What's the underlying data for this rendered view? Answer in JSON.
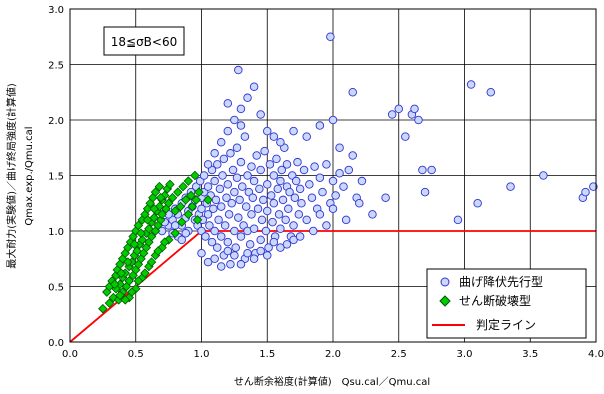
{
  "chart_data": {
    "type": "scatter",
    "title": "",
    "xlabel": "せん断余裕度(計算値)　Qsu.cal／Qmu.cal",
    "ylabel_line1": "最大耐力(実験値)／曲げ終局強度(計算値)",
    "ylabel_line2": "Qmax.exp./Qmu.cal",
    "xlim": [
      0.0,
      4.0
    ],
    "ylim": [
      0.0,
      3.0
    ],
    "xticks": [
      "0.0",
      "0.5",
      "1.0",
      "1.5",
      "2.0",
      "2.5",
      "3.0",
      "3.5",
      "4.0"
    ],
    "yticks": [
      "0.0",
      "0.5",
      "1.0",
      "1.5",
      "2.0",
      "2.5",
      "3.0"
    ],
    "grid": true,
    "annotation": "18≦σB<60",
    "legend_position": "bottom-right",
    "colors": {
      "flexure_fill": "#c8d8ff",
      "flexure_edge": "#3333cc",
      "shear_fill": "#00cc00",
      "shear_edge": "#005500",
      "judgement_line": "#ff0000"
    },
    "series": [
      {
        "name": "曲げ降伏先行型",
        "marker": "circle",
        "points": [
          [
            0.75,
            1.05
          ],
          [
            0.78,
            1.1
          ],
          [
            0.8,
            1.2
          ],
          [
            0.82,
            1.15
          ],
          [
            0.85,
            1.25
          ],
          [
            0.85,
            1.05
          ],
          [
            0.88,
            1.3
          ],
          [
            0.88,
            1.12
          ],
          [
            0.9,
            1.18
          ],
          [
            0.9,
            1.0
          ],
          [
            0.92,
            1.35
          ],
          [
            0.93,
            1.22
          ],
          [
            0.95,
            1.1
          ],
          [
            0.95,
            1.28
          ],
          [
            0.96,
            1.4
          ],
          [
            0.97,
            1.05
          ],
          [
            0.98,
            1.15
          ],
          [
            0.99,
            1.45
          ],
          [
            1.0,
            1.2
          ],
          [
            1.0,
            1.3
          ],
          [
            1.0,
            1.0
          ],
          [
            1.01,
            1.1
          ],
          [
            1.02,
            1.35
          ],
          [
            1.02,
            1.5
          ],
          [
            1.03,
            0.95
          ],
          [
            1.04,
            1.25
          ],
          [
            1.05,
            1.4
          ],
          [
            1.05,
            1.15
          ],
          [
            1.06,
            1.05
          ],
          [
            1.07,
            1.32
          ],
          [
            1.08,
            0.9
          ],
          [
            1.08,
            1.55
          ],
          [
            1.09,
            1.2
          ],
          [
            1.1,
            1.45
          ],
          [
            1.1,
            1.0
          ],
          [
            1.11,
            1.28
          ],
          [
            1.12,
            0.85
          ],
          [
            1.12,
            1.6
          ],
          [
            1.13,
            1.1
          ],
          [
            1.14,
            1.38
          ],
          [
            1.15,
            0.95
          ],
          [
            1.15,
            1.22
          ],
          [
            1.16,
            1.5
          ],
          [
            1.17,
            0.78
          ],
          [
            1.17,
            1.65
          ],
          [
            1.18,
            1.05
          ],
          [
            1.19,
            1.3
          ],
          [
            1.2,
            1.42
          ],
          [
            1.2,
            0.9
          ],
          [
            1.21,
            1.15
          ],
          [
            1.22,
            1.7
          ],
          [
            1.22,
            0.7
          ],
          [
            1.23,
            1.25
          ],
          [
            1.24,
            1.55
          ],
          [
            1.25,
            1.0
          ],
          [
            1.25,
            1.35
          ],
          [
            1.26,
            0.85
          ],
          [
            1.27,
            1.48
          ],
          [
            1.27,
            1.75
          ],
          [
            1.28,
            1.12
          ],
          [
            1.29,
            1.28
          ],
          [
            1.3,
            0.95
          ],
          [
            1.3,
            1.62
          ],
          [
            1.31,
            1.4
          ],
          [
            1.32,
            1.05
          ],
          [
            1.33,
            1.85
          ],
          [
            1.33,
            0.75
          ],
          [
            1.34,
            1.22
          ],
          [
            1.35,
            1.5
          ],
          [
            1.35,
            1.0
          ],
          [
            1.36,
            1.35
          ],
          [
            1.37,
            0.88
          ],
          [
            1.38,
            1.58
          ],
          [
            1.38,
            1.15
          ],
          [
            1.39,
            1.3
          ],
          [
            1.4,
            1.45
          ],
          [
            1.4,
            1.02
          ],
          [
            1.41,
            0.8
          ],
          [
            1.42,
            1.68
          ],
          [
            1.43,
            1.2
          ],
          [
            1.44,
            1.38
          ],
          [
            1.45,
            0.92
          ],
          [
            1.45,
            1.55
          ],
          [
            1.46,
            1.1
          ],
          [
            1.47,
            1.28
          ],
          [
            1.48,
            1.72
          ],
          [
            1.49,
            1.0
          ],
          [
            1.5,
            1.42
          ],
          [
            1.5,
            1.18
          ],
          [
            1.51,
            0.85
          ],
          [
            1.52,
            1.6
          ],
          [
            1.53,
            1.32
          ],
          [
            1.54,
            1.08
          ],
          [
            1.55,
            1.5
          ],
          [
            1.55,
            1.25
          ],
          [
            1.56,
            0.95
          ],
          [
            1.57,
            1.65
          ],
          [
            1.58,
            1.38
          ],
          [
            1.59,
            1.15
          ],
          [
            1.6,
            1.45
          ],
          [
            1.6,
            1.02
          ],
          [
            1.61,
            1.55
          ],
          [
            1.62,
            1.28
          ],
          [
            1.63,
            1.75
          ],
          [
            1.64,
            1.1
          ],
          [
            1.65,
            1.4
          ],
          [
            1.65,
            1.6
          ],
          [
            1.66,
            1.2
          ],
          [
            1.67,
            1.35
          ],
          [
            1.68,
            0.95
          ],
          [
            1.69,
            1.5
          ],
          [
            1.7,
            1.05
          ],
          [
            1.71,
            1.3
          ],
          [
            1.72,
            1.45
          ],
          [
            1.73,
            1.62
          ],
          [
            1.74,
            1.15
          ],
          [
            1.75,
            1.38
          ],
          [
            1.76,
            1.25
          ],
          [
            1.78,
            1.55
          ],
          [
            1.8,
            1.1
          ],
          [
            1.82,
            1.42
          ],
          [
            1.84,
            1.3
          ],
          [
            1.86,
            1.58
          ],
          [
            1.88,
            1.2
          ],
          [
            1.9,
            1.48
          ],
          [
            1.92,
            1.35
          ],
          [
            1.95,
            1.6
          ],
          [
            1.98,
            1.25
          ],
          [
            2.0,
            1.45
          ],
          [
            2.02,
            1.32
          ],
          [
            2.05,
            1.52
          ],
          [
            2.08,
            1.4
          ],
          [
            2.12,
            1.55
          ],
          [
            2.15,
            1.68
          ],
          [
            2.18,
            1.3
          ],
          [
            2.22,
            1.45
          ],
          [
            1.05,
            1.6
          ],
          [
            1.1,
            1.7
          ],
          [
            1.15,
            1.8
          ],
          [
            1.2,
            1.9
          ],
          [
            1.25,
            2.0
          ],
          [
            1.3,
            2.1
          ],
          [
            1.35,
            2.2
          ],
          [
            1.4,
            2.3
          ],
          [
            1.3,
            1.95
          ],
          [
            1.2,
            2.15
          ],
          [
            1.28,
            2.45
          ],
          [
            1.45,
            2.05
          ],
          [
            1.5,
            1.9
          ],
          [
            1.55,
            1.85
          ],
          [
            1.6,
            1.8
          ],
          [
            1.7,
            1.9
          ],
          [
            1.8,
            1.85
          ],
          [
            1.9,
            1.95
          ],
          [
            1.98,
            2.75
          ],
          [
            2.0,
            2.0
          ],
          [
            2.05,
            1.75
          ],
          [
            2.15,
            2.25
          ],
          [
            2.45,
            2.05
          ],
          [
            2.55,
            1.85
          ],
          [
            2.6,
            2.05
          ],
          [
            2.62,
            2.1
          ],
          [
            2.68,
            1.55
          ],
          [
            2.7,
            1.35
          ],
          [
            2.75,
            1.55
          ],
          [
            2.95,
            1.1
          ],
          [
            3.05,
            2.32
          ],
          [
            3.1,
            1.25
          ],
          [
            3.2,
            2.25
          ],
          [
            3.35,
            1.4
          ],
          [
            3.6,
            1.5
          ],
          [
            3.9,
            1.3
          ],
          [
            3.92,
            1.35
          ],
          [
            3.98,
            1.4
          ],
          [
            2.5,
            2.1
          ],
          [
            2.65,
            2.0
          ],
          [
            1.0,
            0.8
          ],
          [
            1.05,
            0.72
          ],
          [
            1.1,
            0.75
          ],
          [
            1.15,
            0.68
          ],
          [
            1.2,
            0.82
          ],
          [
            1.25,
            0.78
          ],
          [
            1.3,
            0.7
          ],
          [
            1.35,
            0.8
          ],
          [
            1.4,
            0.75
          ],
          [
            1.45,
            0.82
          ],
          [
            1.5,
            0.78
          ],
          [
            1.55,
            0.9
          ],
          [
            1.6,
            0.85
          ],
          [
            1.65,
            0.88
          ],
          [
            1.7,
            0.92
          ],
          [
            1.75,
            0.95
          ],
          [
            0.7,
            1.0
          ],
          [
            0.72,
            1.08
          ],
          [
            0.75,
            1.15
          ],
          [
            0.78,
            0.98
          ],
          [
            0.8,
            1.05
          ],
          [
            0.82,
            0.95
          ],
          [
            0.85,
            0.92
          ],
          [
            0.88,
            0.98
          ],
          [
            1.85,
            1.0
          ],
          [
            1.9,
            1.15
          ],
          [
            1.95,
            1.05
          ],
          [
            2.0,
            1.2
          ],
          [
            2.1,
            1.1
          ],
          [
            2.2,
            1.25
          ],
          [
            2.3,
            1.15
          ],
          [
            2.4,
            1.3
          ]
        ]
      },
      {
        "name": "せん断破壊型",
        "marker": "diamond",
        "points": [
          [
            0.25,
            0.3
          ],
          [
            0.28,
            0.45
          ],
          [
            0.3,
            0.5
          ],
          [
            0.3,
            0.35
          ],
          [
            0.32,
            0.55
          ],
          [
            0.33,
            0.4
          ],
          [
            0.35,
            0.6
          ],
          [
            0.35,
            0.48
          ],
          [
            0.36,
            0.65
          ],
          [
            0.37,
            0.38
          ],
          [
            0.38,
            0.7
          ],
          [
            0.38,
            0.52
          ],
          [
            0.4,
            0.58
          ],
          [
            0.4,
            0.75
          ],
          [
            0.4,
            0.45
          ],
          [
            0.42,
            0.8
          ],
          [
            0.42,
            0.62
          ],
          [
            0.43,
            0.5
          ],
          [
            0.44,
            0.85
          ],
          [
            0.45,
            0.68
          ],
          [
            0.45,
            0.55
          ],
          [
            0.46,
            0.9
          ],
          [
            0.47,
            0.72
          ],
          [
            0.48,
            0.6
          ],
          [
            0.48,
            0.95
          ],
          [
            0.49,
            0.78
          ],
          [
            0.5,
            0.65
          ],
          [
            0.5,
            1.0
          ],
          [
            0.51,
            0.82
          ],
          [
            0.52,
            0.7
          ],
          [
            0.52,
            1.05
          ],
          [
            0.53,
            0.88
          ],
          [
            0.54,
            0.75
          ],
          [
            0.55,
            1.1
          ],
          [
            0.55,
            0.92
          ],
          [
            0.56,
            0.8
          ],
          [
            0.57,
            1.15
          ],
          [
            0.58,
            0.98
          ],
          [
            0.58,
            0.85
          ],
          [
            0.59,
            1.2
          ],
          [
            0.6,
            1.02
          ],
          [
            0.6,
            0.9
          ],
          [
            0.61,
            1.25
          ],
          [
            0.62,
            1.08
          ],
          [
            0.62,
            0.95
          ],
          [
            0.63,
            1.3
          ],
          [
            0.64,
            1.12
          ],
          [
            0.65,
            1.0
          ],
          [
            0.65,
            1.35
          ],
          [
            0.66,
            1.18
          ],
          [
            0.67,
            1.05
          ],
          [
            0.68,
            1.4
          ],
          [
            0.68,
            1.22
          ],
          [
            0.69,
            1.1
          ],
          [
            0.7,
            1.28
          ],
          [
            0.7,
            1.15
          ],
          [
            0.72,
            1.32
          ],
          [
            0.73,
            1.2
          ],
          [
            0.74,
            1.38
          ],
          [
            0.75,
            1.25
          ],
          [
            0.76,
            1.42
          ],
          [
            0.78,
            1.3
          ],
          [
            0.8,
            1.18
          ],
          [
            0.82,
            1.35
          ],
          [
            0.84,
            1.22
          ],
          [
            0.86,
            1.4
          ],
          [
            0.88,
            1.28
          ],
          [
            0.9,
            1.45
          ],
          [
            0.92,
            1.32
          ],
          [
            0.95,
            1.5
          ],
          [
            0.98,
            1.35
          ],
          [
            1.05,
            1.28
          ],
          [
            0.45,
            0.4
          ],
          [
            0.5,
            0.48
          ],
          [
            0.55,
            0.58
          ],
          [
            0.6,
            0.68
          ],
          [
            0.65,
            0.78
          ],
          [
            0.7,
            0.85
          ],
          [
            0.75,
            0.92
          ],
          [
            0.8,
            0.98
          ],
          [
            0.38,
            0.42
          ],
          [
            0.42,
            0.38
          ],
          [
            0.47,
            0.45
          ],
          [
            0.52,
            0.55
          ],
          [
            0.57,
            0.62
          ],
          [
            0.62,
            0.72
          ],
          [
            0.67,
            0.82
          ],
          [
            0.72,
            0.9
          ],
          [
            0.34,
            0.52
          ],
          [
            0.39,
            0.62
          ],
          [
            0.44,
            0.72
          ],
          [
            0.49,
            0.88
          ],
          [
            0.54,
            0.98
          ],
          [
            0.59,
            1.1
          ],
          [
            0.64,
            1.2
          ],
          [
            0.69,
            1.3
          ],
          [
            0.85,
            1.08
          ],
          [
            0.9,
            1.15
          ],
          [
            0.93,
            1.22
          ],
          [
            0.97,
            1.1
          ],
          [
            0.96,
            1.28
          ]
        ]
      },
      {
        "name": "判定ライン",
        "marker": "line",
        "points": [
          [
            0.0,
            0.0
          ],
          [
            1.0,
            1.0
          ],
          [
            4.0,
            1.0
          ]
        ]
      }
    ]
  }
}
